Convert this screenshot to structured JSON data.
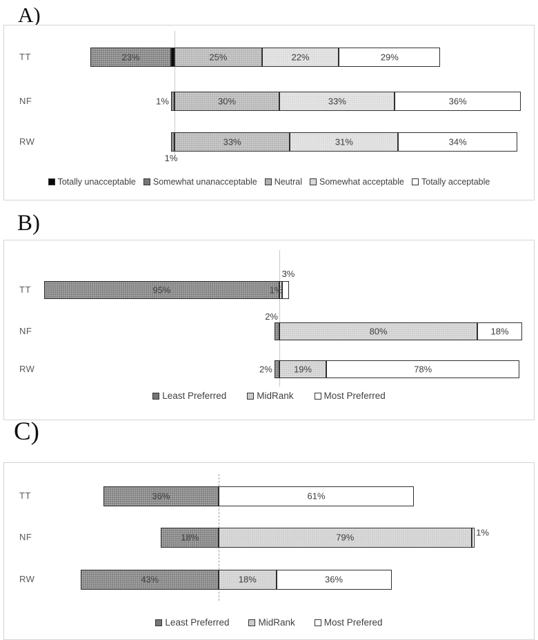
{
  "figure": {
    "background": "#ffffff",
    "panel_letters": {
      "a": "A)",
      "b": "B)",
      "c": "C)"
    }
  },
  "series_styles": {
    "totally_unacceptable": {
      "fill": "#0a0a0a",
      "texture": false
    },
    "somewhat_unacceptable": {
      "fill": "#767676",
      "texture": true
    },
    "neutral": {
      "fill": "#b0b0b0",
      "texture": true
    },
    "somewhat_acceptable": {
      "fill": "#d8d8d8",
      "texture": true
    },
    "totally_acceptable": {
      "fill": "#ffffff",
      "texture": false
    },
    "least_preferred": {
      "fill": "#767676",
      "texture": true
    },
    "midrank": {
      "fill": "#cbcbcb",
      "texture": true
    },
    "most_preferred": {
      "fill": "#ffffff",
      "texture": false
    }
  },
  "panels": [
    {
      "id": "A",
      "letter": "A)",
      "legend": [
        {
          "series": "totally_unacceptable",
          "label": "Totally unacceptable"
        },
        {
          "series": "somewhat_unacceptable",
          "label": "Somewhat unanacceptable"
        },
        {
          "series": "neutral",
          "label": "Neutral"
        },
        {
          "series": "somewhat_acceptable",
          "label": "Somewhat acceptable"
        },
        {
          "series": "totally_acceptable",
          "label": "Totally acceptable"
        }
      ],
      "rows": [
        {
          "category": "TT",
          "segments": [
            {
              "side": "neg",
              "series": "totally_unacceptable",
              "value": 1,
              "label": ""
            },
            {
              "side": "neg",
              "series": "somewhat_unacceptable",
              "value": 23,
              "label": "23%",
              "placement": "inside"
            },
            {
              "side": "pos",
              "series": "neutral",
              "value": 25,
              "label": "25%",
              "placement": "inside"
            },
            {
              "side": "pos",
              "series": "somewhat_acceptable",
              "value": 22,
              "label": "22%",
              "placement": "inside"
            },
            {
              "side": "pos",
              "series": "totally_acceptable",
              "value": 29,
              "label": "29%",
              "placement": "inside"
            }
          ]
        },
        {
          "category": "NF",
          "segments": [
            {
              "side": "neg",
              "series": "somewhat_unacceptable",
              "value": 1,
              "label": "1%",
              "placement": "out-left"
            },
            {
              "side": "pos",
              "series": "neutral",
              "value": 30,
              "label": "30%",
              "placement": "inside"
            },
            {
              "side": "pos",
              "series": "somewhat_acceptable",
              "value": 33,
              "label": "33%",
              "placement": "inside"
            },
            {
              "side": "pos",
              "series": "totally_acceptable",
              "value": 36,
              "label": "36%",
              "placement": "inside"
            }
          ]
        },
        {
          "category": "RW",
          "segments": [
            {
              "side": "neg",
              "series": "somewhat_unacceptable",
              "value": 1,
              "label": "1%",
              "placement": "out-below"
            },
            {
              "side": "pos",
              "series": "neutral",
              "value": 33,
              "label": "33%",
              "placement": "inside"
            },
            {
              "side": "pos",
              "series": "somewhat_acceptable",
              "value": 31,
              "label": "31%",
              "placement": "inside"
            },
            {
              "side": "pos",
              "series": "totally_acceptable",
              "value": 34,
              "label": "34%",
              "placement": "inside"
            }
          ]
        }
      ]
    },
    {
      "id": "B",
      "letter": "B)",
      "legend": [
        {
          "series": "least_preferred",
          "label": "Least Preferred"
        },
        {
          "series": "midrank",
          "label": "MidRank"
        },
        {
          "series": "most_preferred",
          "label": "Most Preferred"
        }
      ],
      "rows": [
        {
          "category": "TT",
          "segments": [
            {
              "side": "neg",
              "series": "least_preferred",
              "value": 95,
              "label": "95%",
              "placement": "inside"
            },
            {
              "side": "pos",
              "series": "midrank",
              "value": 1,
              "label": "1%",
              "placement": "at-axis"
            },
            {
              "side": "pos",
              "series": "most_preferred",
              "value": 3,
              "label": "3%",
              "placement": "above"
            }
          ]
        },
        {
          "category": "NF",
          "segments": [
            {
              "side": "neg",
              "series": "least_preferred",
              "value": 2,
              "label": "2%",
              "placement": "out-left-above"
            },
            {
              "side": "pos",
              "series": "midrank",
              "value": 80,
              "label": "80%",
              "placement": "inside"
            },
            {
              "side": "pos",
              "series": "most_preferred",
              "value": 18,
              "label": "18%",
              "placement": "inside"
            }
          ]
        },
        {
          "category": "RW",
          "segments": [
            {
              "side": "neg",
              "series": "least_preferred",
              "value": 2,
              "label": "2%",
              "placement": "out-left"
            },
            {
              "side": "pos",
              "series": "midrank",
              "value": 19,
              "label": "19%",
              "placement": "inside"
            },
            {
              "side": "pos",
              "series": "most_preferred",
              "value": 78,
              "label": "78%",
              "placement": "inside"
            }
          ]
        }
      ]
    },
    {
      "id": "C",
      "letter": "C)",
      "legend": [
        {
          "series": "least_preferred",
          "label": "Least Preferred"
        },
        {
          "series": "midrank",
          "label": "MidRank"
        },
        {
          "series": "most_preferred",
          "label": "Most Prefered"
        }
      ],
      "rows": [
        {
          "category": "TT",
          "segments": [
            {
              "side": "neg",
              "series": "least_preferred",
              "value": 36,
              "label": "36%",
              "placement": "inside"
            },
            {
              "side": "pos",
              "series": "most_preferred",
              "value": 61,
              "label": "61%",
              "placement": "inside"
            }
          ]
        },
        {
          "category": "NF",
          "segments": [
            {
              "side": "neg",
              "series": "least_preferred",
              "value": 18,
              "label": "18%",
              "placement": "inside"
            },
            {
              "side": "pos",
              "series": "midrank",
              "value": 79,
              "label": "79%",
              "placement": "inside"
            },
            {
              "side": "pos",
              "series": "most_preferred",
              "value": 1,
              "label": "1%",
              "placement": "out-right"
            }
          ]
        },
        {
          "category": "RW",
          "segments": [
            {
              "side": "neg",
              "series": "least_preferred",
              "value": 43,
              "label": "43%",
              "placement": "inside"
            },
            {
              "side": "pos",
              "series": "midrank",
              "value": 18,
              "label": "18%",
              "placement": "inside"
            },
            {
              "side": "pos",
              "series": "most_preferred",
              "value": 36,
              "label": "36%",
              "placement": "inside"
            }
          ]
        }
      ]
    }
  ],
  "chart_data": [
    {
      "id": "A",
      "type": "bar",
      "variant": "horizontal-diverging-stacked",
      "title": "",
      "categories": [
        "TT",
        "NF",
        "RW"
      ],
      "series": [
        {
          "name": "Totally unacceptable",
          "values": [
            1,
            0,
            0
          ],
          "color": "#0a0a0a"
        },
        {
          "name": "Somewhat unanacceptable",
          "values": [
            23,
            1,
            1
          ],
          "color": "#767676"
        },
        {
          "name": "Neutral",
          "values": [
            25,
            30,
            33
          ],
          "color": "#b0b0b0"
        },
        {
          "name": "Somewhat acceptable",
          "values": [
            22,
            33,
            31
          ],
          "color": "#d8d8d8"
        },
        {
          "name": "Totally acceptable",
          "values": [
            29,
            36,
            34
          ],
          "color": "#ffffff"
        }
      ],
      "negative_series": [
        "Totally unacceptable",
        "Somewhat unanacceptable"
      ],
      "unit": "%",
      "legend_position": "bottom",
      "gridline": "zero-axis-vertical"
    },
    {
      "id": "B",
      "type": "bar",
      "variant": "horizontal-diverging-stacked",
      "title": "",
      "categories": [
        "TT",
        "NF",
        "RW"
      ],
      "series": [
        {
          "name": "Least Preferred",
          "values": [
            95,
            2,
            2
          ],
          "color": "#767676"
        },
        {
          "name": "MidRank",
          "values": [
            1,
            80,
            19
          ],
          "color": "#cbcbcb"
        },
        {
          "name": "Most Preferred",
          "values": [
            3,
            18,
            78
          ],
          "color": "#ffffff"
        }
      ],
      "negative_series": [
        "Least Preferred"
      ],
      "unit": "%",
      "legend_position": "bottom",
      "gridline": "zero-axis-vertical"
    },
    {
      "id": "C",
      "type": "bar",
      "variant": "horizontal-diverging-stacked",
      "title": "",
      "categories": [
        "TT",
        "NF",
        "RW"
      ],
      "series": [
        {
          "name": "Least Preferred",
          "values": [
            36,
            18,
            43
          ],
          "color": "#767676"
        },
        {
          "name": "MidRank",
          "values": [
            0,
            79,
            18
          ],
          "color": "#cbcbcb"
        },
        {
          "name": "Most Prefered",
          "values": [
            61,
            1,
            36
          ],
          "color": "#ffffff"
        }
      ],
      "negative_series": [
        "Least Preferred"
      ],
      "unit": "%",
      "legend_position": "bottom",
      "gridline": "zero-axis-vertical-dashed"
    }
  ]
}
